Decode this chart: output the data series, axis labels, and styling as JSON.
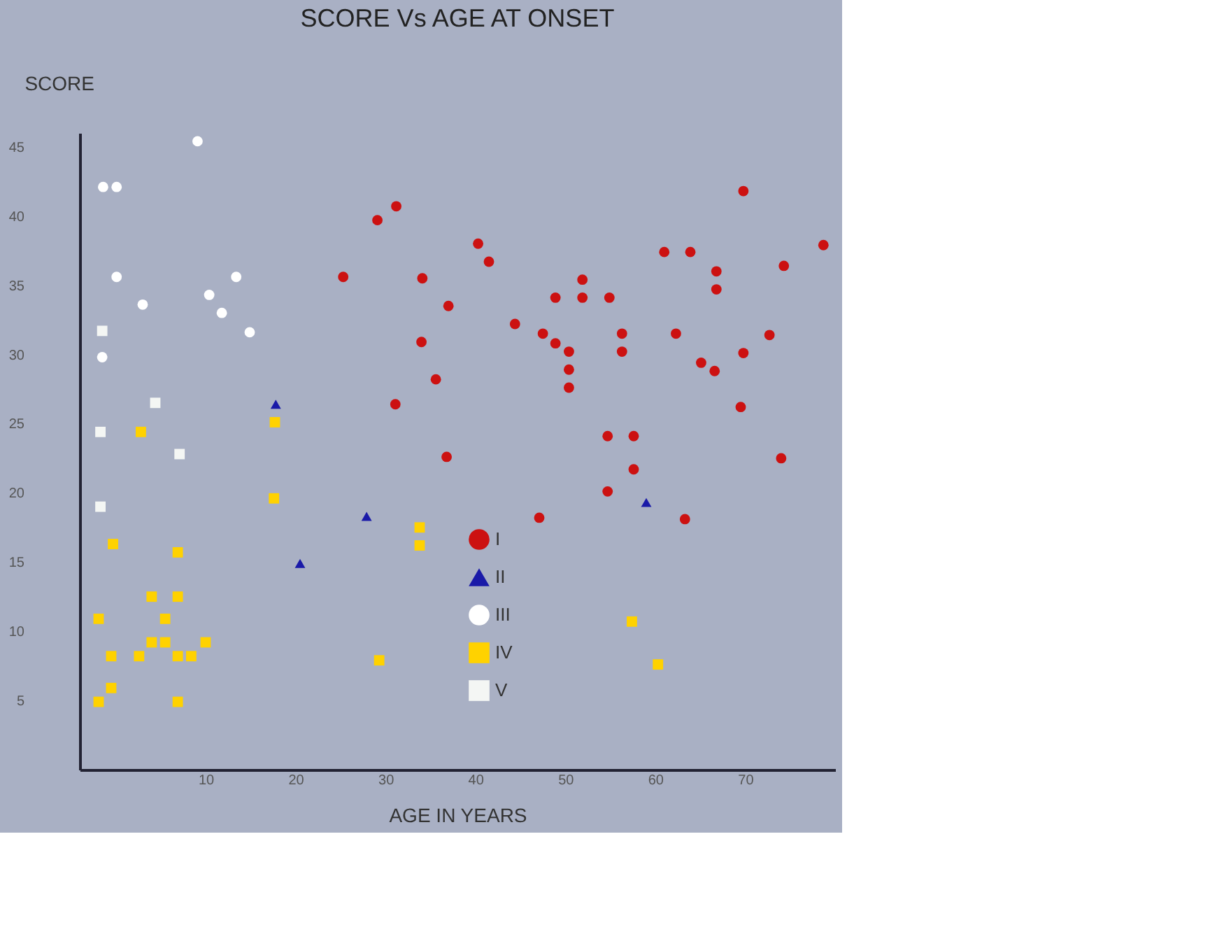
{
  "chart_data": {
    "type": "scatter",
    "title": "SCORE  Vs  AGE AT ONSET",
    "xlabel": "AGE IN YEARS",
    "ylabel": "SCORE",
    "xlim": [
      -4,
      80
    ],
    "ylim": [
      0,
      46
    ],
    "xticks": [
      10,
      20,
      30,
      40,
      50,
      60,
      70
    ],
    "yticks": [
      5,
      10,
      15,
      20,
      25,
      30,
      35,
      40,
      45
    ],
    "grid": false,
    "legend": "bottom",
    "series": [
      {
        "name": "I",
        "color": "#cc1111",
        "marker": "circle",
        "x": [
          31.2,
          29.1,
          40.3,
          41.5,
          25.3,
          34.1,
          51.9,
          48.9,
          51.9,
          54.9,
          37.0,
          44.4,
          47.5,
          48.9,
          50.4,
          34.0,
          56.3,
          56.3,
          50.4,
          50.4,
          35.6,
          31.1,
          62.3,
          72.7,
          69.8,
          65.1,
          66.6,
          69.5,
          54.7,
          57.6,
          57.6,
          54.7,
          36.8,
          74.0,
          47.1,
          63.3,
          69.8,
          78.7,
          61.0,
          63.9,
          66.8,
          66.8,
          74.3
        ],
        "values": [
          40.7,
          39.7,
          38.0,
          36.7,
          35.6,
          35.5,
          35.4,
          34.1,
          34.1,
          34.1,
          33.5,
          32.2,
          31.5,
          30.8,
          30.2,
          30.9,
          31.5,
          30.2,
          28.9,
          27.6,
          28.2,
          26.4,
          31.5,
          31.4,
          30.1,
          29.4,
          28.8,
          26.2,
          24.1,
          24.1,
          21.7,
          20.1,
          22.6,
          22.5,
          18.2,
          18.1,
          41.8,
          37.9,
          37.4,
          37.4,
          36.0,
          34.7,
          36.4
        ]
      },
      {
        "name": "II",
        "color": "#1a1aa8",
        "marker": "triangle",
        "x": [
          17.8,
          20.5,
          27.9,
          59.0
        ],
        "values": [
          26.4,
          14.9,
          18.3,
          19.3
        ]
      },
      {
        "name": "III",
        "color": "#ffffff",
        "marker": "circle",
        "x": [
          9.1,
          -1.4,
          0.1,
          0.1,
          13.4,
          3.0,
          10.4,
          11.8,
          14.9,
          -1.5
        ],
        "values": [
          45.4,
          42.1,
          42.1,
          35.6,
          35.6,
          33.6,
          34.3,
          33.0,
          31.6,
          29.8
        ]
      },
      {
        "name": "IV",
        "color": "#ffd200",
        "marker": "square",
        "x": [
          2.8,
          17.7,
          17.6,
          33.8,
          33.8,
          -0.3,
          6.9,
          4.0,
          6.9,
          -1.9,
          5.5,
          4.0,
          5.5,
          10.0,
          -0.5,
          2.6,
          6.9,
          8.4,
          -0.5,
          -1.9,
          6.9,
          29.3,
          57.4,
          60.3
        ],
        "values": [
          24.4,
          25.1,
          19.6,
          17.5,
          16.2,
          16.3,
          15.7,
          12.5,
          12.5,
          10.9,
          10.9,
          9.2,
          9.2,
          9.2,
          8.2,
          8.2,
          8.2,
          8.2,
          5.9,
          4.9,
          4.9,
          7.9,
          10.7,
          7.6
        ]
      },
      {
        "name": "V",
        "color": "#f4f6f4",
        "marker": "square",
        "x": [
          -1.5,
          4.4,
          -1.7,
          7.1,
          -1.7
        ],
        "values": [
          31.7,
          26.5,
          24.4,
          22.8,
          19.0
        ]
      }
    ]
  }
}
